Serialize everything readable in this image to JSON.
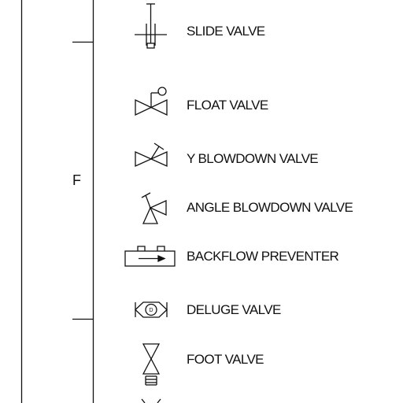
{
  "legend": {
    "section_letter": "F",
    "items": [
      {
        "id": "slide",
        "label": "SLIDE VALVE",
        "icon": "slide-valve-icon"
      },
      {
        "id": "float",
        "label": "FLOAT VALVE",
        "icon": "float-valve-icon"
      },
      {
        "id": "yblow",
        "label": "Y BLOWDOWN VALVE",
        "icon": "y-blowdown-valve-icon"
      },
      {
        "id": "angle",
        "label": "ANGLE BLOWDOWN VALVE",
        "icon": "angle-blowdown-valve-icon"
      },
      {
        "id": "backflow",
        "label": "BACKFLOW PREVENTER",
        "icon": "backflow-preventer-icon"
      },
      {
        "id": "deluge",
        "label": "DELUGE VALVE",
        "icon": "deluge-valve-icon",
        "icon_text": "D"
      },
      {
        "id": "foot",
        "label": "FOOT VALVE",
        "icon": "foot-valve-icon"
      }
    ]
  }
}
